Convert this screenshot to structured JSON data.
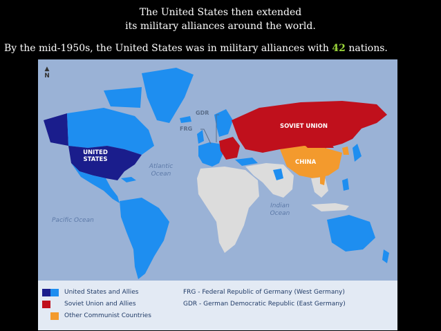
{
  "heading": {
    "line1": "The United States then extended",
    "line2": "its military alliances around the world."
  },
  "subline": {
    "before": "By the mid-1950s, the United States was in military alliances with ",
    "highlight": "42",
    "after": " nations."
  },
  "map": {
    "north_label": "N",
    "oceans": {
      "atlantic_1": "Atlantic",
      "atlantic_2": "Ocean",
      "pacific": "Pacific Ocean",
      "indian_1": "Indian",
      "indian_2": "Ocean"
    },
    "countries": {
      "us_1": "UNITED",
      "us_2": "STATES",
      "soviet": "SOVIET UNION",
      "china": "CHINA",
      "gdr": "GDR",
      "frg": "FRG"
    },
    "colors": {
      "ocean": "#9ab2d6",
      "us_allies_dark": "#1a1d8c",
      "us_allies_light": "#1e8ef0",
      "soviet": "#c0101c",
      "china": "#f39a2d",
      "neutral": "#dcdcdc"
    }
  },
  "legend": {
    "us_allies": "United States and Allies",
    "soviet_allies": "Soviet Union and Allies",
    "other_communist": "Other Communist Countries",
    "frg_def": "FRG - Federal Republic of Germany (West Germany)",
    "gdr_def": "GDR - German Democratic Republic (East Germany)"
  }
}
